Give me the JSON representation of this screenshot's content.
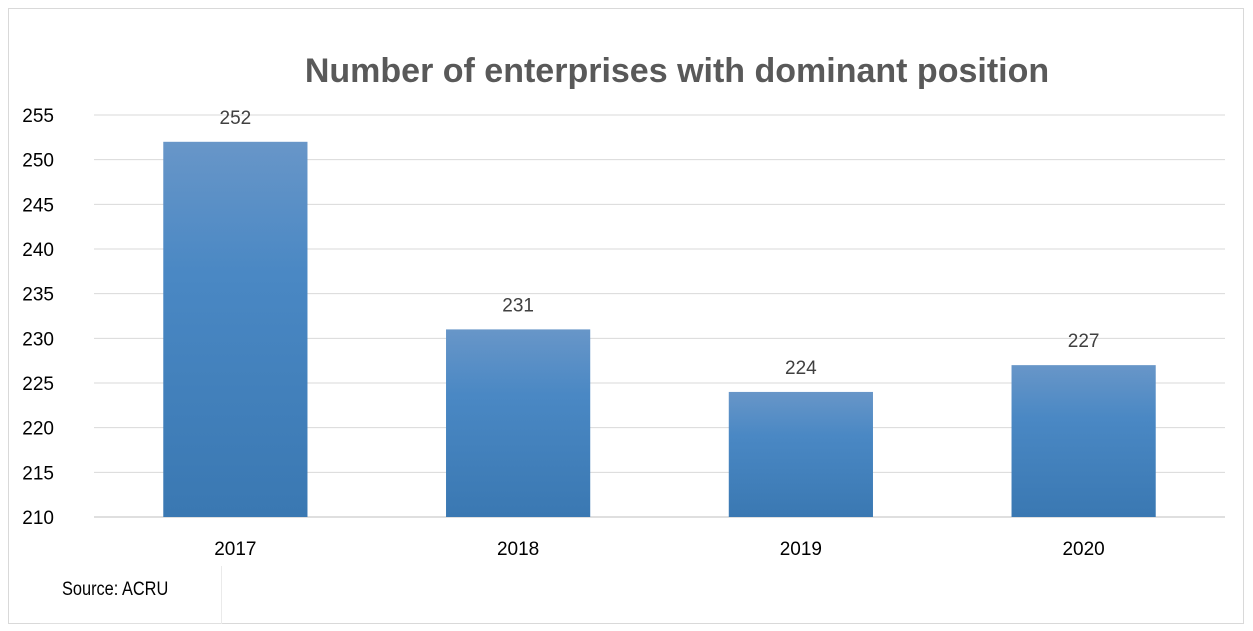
{
  "chart_data": {
    "type": "bar",
    "title": "Number of enterprises with dominant position",
    "categories": [
      "2017",
      "2018",
      "2019",
      "2020"
    ],
    "values": [
      252,
      231,
      224,
      227
    ],
    "data_labels": [
      "252",
      "231",
      "224",
      "227"
    ],
    "xlabel": "",
    "ylabel": "",
    "ylim": [
      210,
      255
    ],
    "yticks": [
      210,
      215,
      220,
      225,
      230,
      235,
      240,
      245,
      250,
      255
    ],
    "grid": true,
    "legend": "none",
    "bar_color": "#4a86c2"
  },
  "source_note": "Source: ACRU"
}
